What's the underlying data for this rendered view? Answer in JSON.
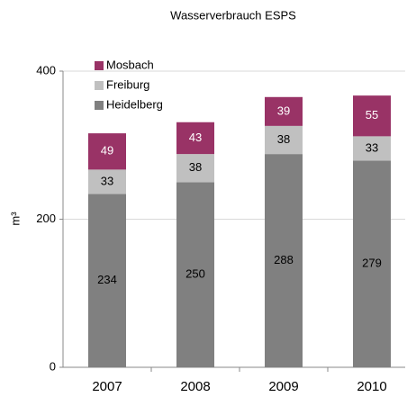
{
  "chart_data": {
    "type": "stacked_bar",
    "title": "Wasserverbrauch ESPS",
    "y_label": "m³",
    "categories": [
      "2007",
      "2008",
      "2009",
      "2010"
    ],
    "series": [
      {
        "name": "Heidelberg",
        "color": "#808080",
        "values": [
          234,
          250,
          288,
          279
        ]
      },
      {
        "name": "Freiburg",
        "color": "#c0c0c0",
        "values": [
          33,
          38,
          38,
          33
        ]
      },
      {
        "name": "Mosbach",
        "color": "#993366",
        "values": [
          49,
          43,
          39,
          55
        ]
      }
    ],
    "ylim": [
      0,
      400
    ],
    "yticks": [
      0,
      200,
      400
    ],
    "grid": true,
    "legend": "top-left"
  }
}
